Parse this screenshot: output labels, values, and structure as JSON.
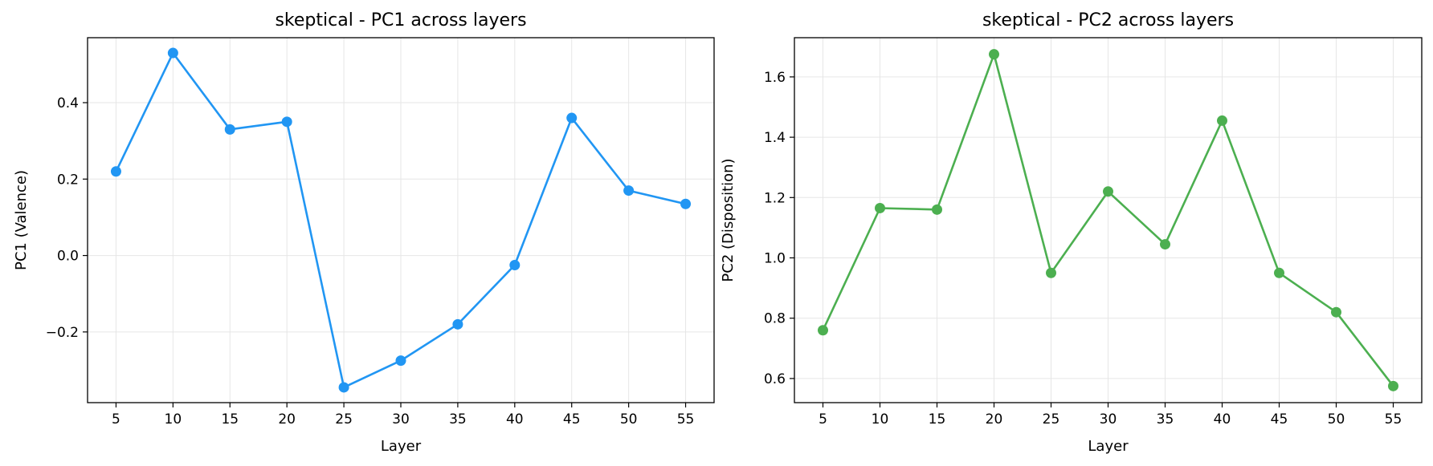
{
  "chart_data": [
    {
      "type": "line",
      "title": "skeptical - PC1 across layers",
      "xlabel": "Layer",
      "ylabel": "PC1 (Valence)",
      "x": [
        5,
        10,
        15,
        20,
        25,
        30,
        35,
        40,
        45,
        50,
        55
      ],
      "series": [
        {
          "values": [
            0.22,
            0.53,
            0.33,
            0.35,
            -0.345,
            -0.275,
            -0.18,
            -0.025,
            0.36,
            0.17,
            0.135
          ]
        }
      ],
      "color": "#2196f3",
      "ylim": [
        -0.385,
        0.57
      ],
      "xlim": [
        2.5,
        57.5
      ],
      "yticks": [
        -0.2,
        0.0,
        0.2,
        0.4
      ],
      "ytick_labels": [
        "−0.2",
        "0.0",
        "0.2",
        "0.4"
      ],
      "xticks": [
        5,
        10,
        15,
        20,
        25,
        30,
        35,
        40,
        45,
        50,
        55
      ],
      "grid": true
    },
    {
      "type": "line",
      "title": "skeptical - PC2 across layers",
      "xlabel": "Layer",
      "ylabel": "PC2 (Disposition)",
      "x": [
        5,
        10,
        15,
        20,
        25,
        30,
        35,
        40,
        45,
        50,
        55
      ],
      "series": [
        {
          "values": [
            0.76,
            1.165,
            1.16,
            1.675,
            0.95,
            1.22,
            1.045,
            1.455,
            0.95,
            0.82,
            0.575
          ]
        }
      ],
      "color": "#4caf50",
      "ylim": [
        0.52,
        1.73
      ],
      "xlim": [
        2.5,
        57.5
      ],
      "yticks": [
        0.6,
        0.8,
        1.0,
        1.2,
        1.4,
        1.6
      ],
      "ytick_labels": [
        "0.6",
        "0.8",
        "1.0",
        "1.2",
        "1.4",
        "1.6"
      ],
      "xticks": [
        5,
        10,
        15,
        20,
        25,
        30,
        35,
        40,
        45,
        50,
        55
      ],
      "grid": true
    }
  ]
}
